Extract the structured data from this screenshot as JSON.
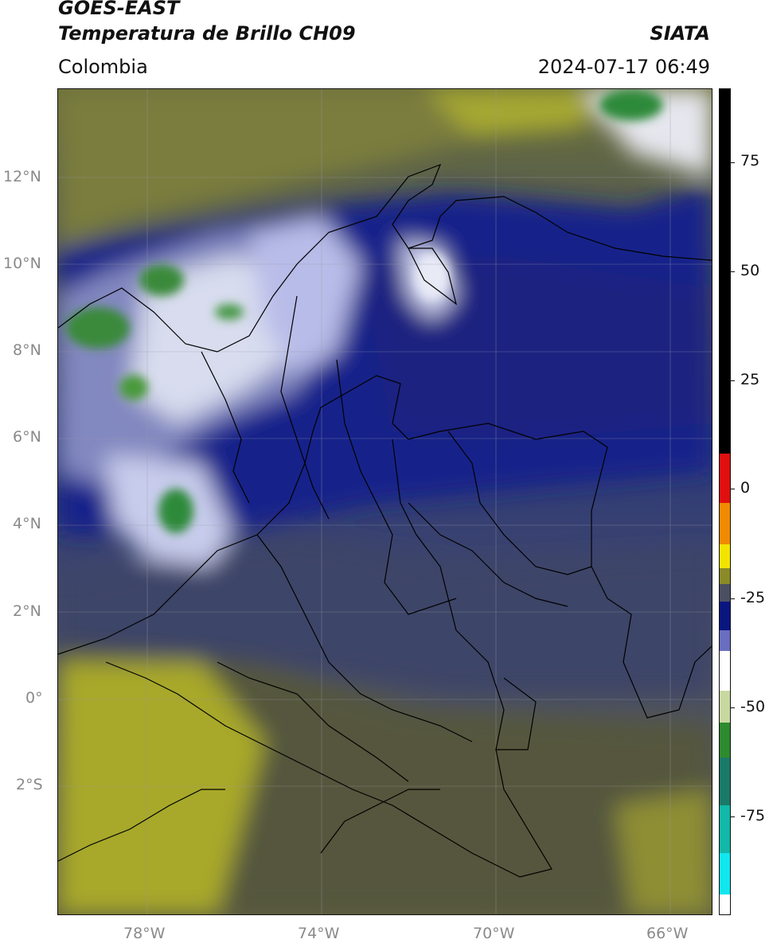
{
  "header": {
    "title_line1": "GOES-EAST",
    "title_line2": "Temperatura de Brillo CH09",
    "region": "Colombia",
    "source": "SIATA",
    "timestamp": "2024-07-17 06:49"
  },
  "map": {
    "lat_labels": [
      "12°N",
      "10°N",
      "8°N",
      "6°N",
      "4°N",
      "2°N",
      "0°",
      "2°S"
    ],
    "lon_labels": [
      "78°W",
      "74°W",
      "70°W",
      "66°W"
    ],
    "grid": true
  },
  "colorbar": {
    "labels": [
      "75",
      "50",
      "25",
      "0",
      "-25",
      "-50",
      "-75"
    ],
    "colors": {
      "black": "#000000",
      "red": "#e01010",
      "orange": "#f08a00",
      "yellow": "#f2e400",
      "olive": "#8a8a28",
      "gray": "#4a4f62",
      "navy": "#0a1680",
      "white": "#ffffff",
      "green": "#2e8a2e",
      "teal": "#12b8a8",
      "cyan": "#12e6ee"
    }
  }
}
